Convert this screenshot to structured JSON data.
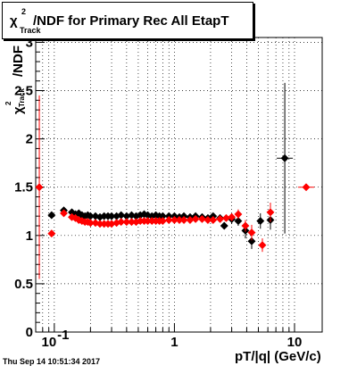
{
  "title": {
    "chi": "χ",
    "sup": "2",
    "sub": "Track",
    "rest": "/NDF for Primary Rec All EtapT"
  },
  "xlabel": "pT/|q| (GeV/c)",
  "ylabel": {
    "chi": "χ",
    "sup": "2",
    "sub": "Track",
    "rest": "/NDF"
  },
  "footer": "Thu Sep 14 10:51:34 2017",
  "colors": {
    "series_black": "#000000",
    "series_red": "#ff0000",
    "grid": "#000000"
  },
  "chart_data": {
    "type": "scatter",
    "title": "χ2Track/NDF for Primary Rec All EtapT",
    "xlabel": "pT/|q| (GeV/c)",
    "ylabel": "χ2Track/NDF",
    "xscale": "log",
    "xlim": [
      0.07,
      17
    ],
    "ylim": [
      0,
      3.05
    ],
    "grid": true,
    "x_ticks": [
      0.1,
      1,
      10
    ],
    "x_tick_labels": [
      "10^-1",
      "1",
      "10"
    ],
    "y_ticks": [
      0,
      0.5,
      1,
      1.5,
      2,
      2.5,
      3
    ],
    "y_tick_labels": [
      "0",
      "0.5",
      "1",
      "1.5",
      "2",
      "2.5",
      "3"
    ],
    "series": [
      {
        "color": "#000000",
        "points": [
          {
            "x": 0.095,
            "y": 1.21,
            "err": 0.03
          },
          {
            "x": 0.12,
            "y": 1.26,
            "err": 0.015
          },
          {
            "x": 0.14,
            "y": 1.24
          },
          {
            "x": 0.15,
            "y": 1.22
          },
          {
            "x": 0.16,
            "y": 1.23
          },
          {
            "x": 0.17,
            "y": 1.21
          },
          {
            "x": 0.18,
            "y": 1.2
          },
          {
            "x": 0.19,
            "y": 1.21
          },
          {
            "x": 0.2,
            "y": 1.2
          },
          {
            "x": 0.22,
            "y": 1.2
          },
          {
            "x": 0.24,
            "y": 1.19
          },
          {
            "x": 0.26,
            "y": 1.2
          },
          {
            "x": 0.28,
            "y": 1.2
          },
          {
            "x": 0.3,
            "y": 1.2
          },
          {
            "x": 0.33,
            "y": 1.2
          },
          {
            "x": 0.36,
            "y": 1.21
          },
          {
            "x": 0.4,
            "y": 1.2
          },
          {
            "x": 0.44,
            "y": 1.21
          },
          {
            "x": 0.48,
            "y": 1.2
          },
          {
            "x": 0.52,
            "y": 1.21
          },
          {
            "x": 0.56,
            "y": 1.22
          },
          {
            "x": 0.6,
            "y": 1.21
          },
          {
            "x": 0.65,
            "y": 1.2
          },
          {
            "x": 0.7,
            "y": 1.21
          },
          {
            "x": 0.75,
            "y": 1.2
          },
          {
            "x": 0.8,
            "y": 1.2
          },
          {
            "x": 0.9,
            "y": 1.2
          },
          {
            "x": 1.0,
            "y": 1.2
          },
          {
            "x": 1.1,
            "y": 1.19
          },
          {
            "x": 1.2,
            "y": 1.2
          },
          {
            "x": 1.35,
            "y": 1.19
          },
          {
            "x": 1.5,
            "y": 1.2
          },
          {
            "x": 1.7,
            "y": 1.19
          },
          {
            "x": 1.9,
            "y": 1.18
          },
          {
            "x": 2.1,
            "y": 1.2
          },
          {
            "x": 2.4,
            "y": 1.18
          },
          {
            "x": 2.6,
            "y": 1.1,
            "err": 0.03
          },
          {
            "x": 3.0,
            "y": 1.17,
            "err": 0.05
          },
          {
            "x": 3.4,
            "y": 1.15,
            "err": 0.05
          },
          {
            "x": 3.9,
            "y": 1.05,
            "err": 0.08
          },
          {
            "x": 4.4,
            "y": 0.94,
            "err": 0.08
          },
          {
            "x": 5.2,
            "y": 1.15,
            "err": 0.08
          },
          {
            "x": 6.3,
            "y": 1.16,
            "err": 0.1
          },
          {
            "x": 8.3,
            "y": 1.8,
            "err": 0.78
          }
        ]
      },
      {
        "color": "#ff0000",
        "points": [
          {
            "x": 0.075,
            "y": 1.5,
            "err": 0.95
          },
          {
            "x": 0.095,
            "y": 1.02,
            "err": 0.03
          },
          {
            "x": 0.12,
            "y": 1.23
          },
          {
            "x": 0.14,
            "y": 1.19
          },
          {
            "x": 0.15,
            "y": 1.18
          },
          {
            "x": 0.16,
            "y": 1.16
          },
          {
            "x": 0.17,
            "y": 1.15
          },
          {
            "x": 0.18,
            "y": 1.14
          },
          {
            "x": 0.19,
            "y": 1.14
          },
          {
            "x": 0.2,
            "y": 1.13
          },
          {
            "x": 0.22,
            "y": 1.13
          },
          {
            "x": 0.24,
            "y": 1.12
          },
          {
            "x": 0.26,
            "y": 1.12
          },
          {
            "x": 0.28,
            "y": 1.12
          },
          {
            "x": 0.3,
            "y": 1.12
          },
          {
            "x": 0.33,
            "y": 1.13
          },
          {
            "x": 0.36,
            "y": 1.14
          },
          {
            "x": 0.4,
            "y": 1.14
          },
          {
            "x": 0.44,
            "y": 1.14
          },
          {
            "x": 0.48,
            "y": 1.14
          },
          {
            "x": 0.52,
            "y": 1.15
          },
          {
            "x": 0.56,
            "y": 1.15
          },
          {
            "x": 0.6,
            "y": 1.15
          },
          {
            "x": 0.65,
            "y": 1.15
          },
          {
            "x": 0.7,
            "y": 1.15
          },
          {
            "x": 0.75,
            "y": 1.15
          },
          {
            "x": 0.8,
            "y": 1.15
          },
          {
            "x": 0.9,
            "y": 1.16
          },
          {
            "x": 1.0,
            "y": 1.16
          },
          {
            "x": 1.1,
            "y": 1.16
          },
          {
            "x": 1.2,
            "y": 1.16
          },
          {
            "x": 1.35,
            "y": 1.16
          },
          {
            "x": 1.5,
            "y": 1.17
          },
          {
            "x": 1.7,
            "y": 1.17
          },
          {
            "x": 1.9,
            "y": 1.16
          },
          {
            "x": 2.1,
            "y": 1.16
          },
          {
            "x": 2.4,
            "y": 1.17
          },
          {
            "x": 2.7,
            "y": 1.18,
            "err": 0.03
          },
          {
            "x": 3.0,
            "y": 1.19,
            "err": 0.04
          },
          {
            "x": 3.4,
            "y": 1.22,
            "err": 0.05
          },
          {
            "x": 3.9,
            "y": 1.1,
            "err": 0.06
          },
          {
            "x": 4.4,
            "y": 1.03,
            "err": 0.08
          },
          {
            "x": 5.4,
            "y": 0.9,
            "err": 0.07
          },
          {
            "x": 6.3,
            "y": 1.24,
            "err": 0.1
          },
          {
            "x": 12.5,
            "y": 1.5
          }
        ]
      }
    ]
  }
}
